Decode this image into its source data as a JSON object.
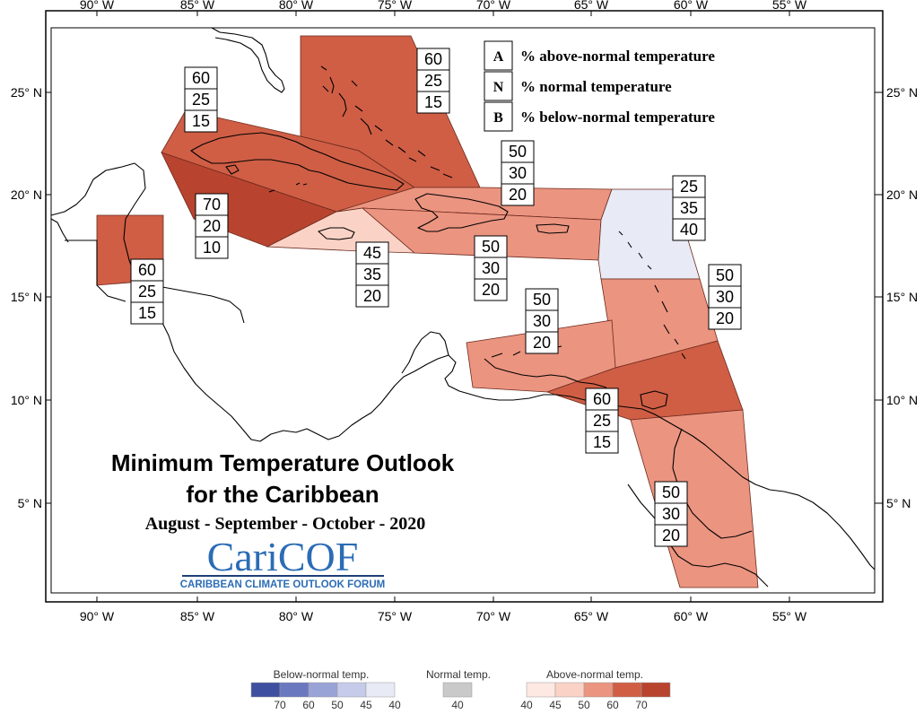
{
  "map": {
    "title_line1": "Minimum Temperature Outlook",
    "title_line2": "for the Caribbean",
    "period": "August - September - October - 2020",
    "logo": {
      "text": "CariCOF",
      "subtitle": "CARIBBEAN CLIMATE OUTLOOK FORUM"
    },
    "longitude_labels": [
      "90° W",
      "85° W",
      "80° W",
      "75° W",
      "70° W",
      "65° W",
      "60° W",
      "55° W"
    ],
    "latitude_labels": [
      "25° N",
      "20° N",
      "15° N",
      "10° N",
      "5° N"
    ],
    "key": [
      {
        "letter": "A",
        "text": "% above-normal temperature"
      },
      {
        "letter": "N",
        "text": "% normal temperature"
      },
      {
        "letter": "B",
        "text": "% below-normal temperature"
      }
    ],
    "zones": [
      {
        "name": "bahamas-zone",
        "values": [
          "60",
          "25",
          "15"
        ],
        "color": "#cf5e45"
      },
      {
        "name": "cuba-zone",
        "values": [
          "60",
          "25",
          "15"
        ],
        "color": "#cf5e45"
      },
      {
        "name": "cayman-zone",
        "values": [
          "70",
          "20",
          "10"
        ],
        "color": "#b8442f"
      },
      {
        "name": "belize-zone",
        "values": [
          "60",
          "25",
          "15"
        ],
        "color": "#cf5e45"
      },
      {
        "name": "jamaica-zone",
        "values": [
          "45",
          "35",
          "20"
        ],
        "color": "#fad3c6"
      },
      {
        "name": "hispaniola-puerto-rico-zone",
        "values": [
          "50",
          "30",
          "20"
        ],
        "color": "#eb9480"
      },
      {
        "name": "hispaniola-south-zone",
        "values": [
          "50",
          "30",
          "20"
        ],
        "color": "#eb9480"
      },
      {
        "name": "leeward-islands-zone",
        "values": [
          "25",
          "35",
          "40"
        ],
        "color": "#e8eaf5"
      },
      {
        "name": "windward-islands-zone",
        "values": [
          "50",
          "30",
          "20"
        ],
        "color": "#eb9480"
      },
      {
        "name": "abc-islands-zone",
        "values": [
          "50",
          "30",
          "20"
        ],
        "color": "#eb9480"
      },
      {
        "name": "trinidad-zone",
        "values": [
          "60",
          "25",
          "15"
        ],
        "color": "#cf5e45"
      },
      {
        "name": "guianas-zone",
        "values": [
          "50",
          "30",
          "20"
        ],
        "color": "#eb9480"
      }
    ]
  },
  "legend": {
    "below": {
      "label": "Below-normal temp.",
      "ticks": [
        "70",
        "60",
        "50",
        "45",
        "40"
      ],
      "colors": [
        "#3f4fa0",
        "#6a78c0",
        "#9aa3d6",
        "#c6cbea",
        "#e8eaf5"
      ]
    },
    "normal": {
      "label": "Normal temp.",
      "ticks": [
        "40"
      ],
      "colors": [
        "#c9c9c9"
      ]
    },
    "above": {
      "label": "Above-normal temp.",
      "ticks": [
        "40",
        "45",
        "50",
        "60",
        "70"
      ],
      "colors": [
        "#fde9e2",
        "#fad3c6",
        "#eb9480",
        "#cf5e45",
        "#b8442f"
      ]
    }
  }
}
